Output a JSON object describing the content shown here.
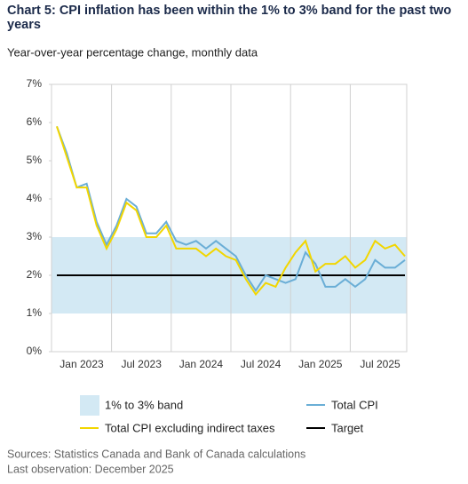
{
  "chart_data": {
    "type": "line",
    "title": "Chart 5: CPI inflation has been within the 1% to 3% band for the past two years",
    "subtitle": "Year-over-year percentage change, monthly data",
    "categories": [
      "Jan 2023",
      null,
      null,
      null,
      null,
      null,
      "Jul 2023",
      null,
      null,
      null,
      null,
      null,
      "Jan 2024",
      null,
      null,
      null,
      null,
      null,
      "Jul 2024",
      null,
      null,
      null,
      null,
      null,
      "Jan 2025",
      null,
      null,
      null,
      null,
      null,
      "Jul 2025",
      null,
      null,
      null,
      null,
      null
    ],
    "series": [
      {
        "name": "Total CPI",
        "color": "#6aaed6",
        "values": [
          5.9,
          5.2,
          4.3,
          4.4,
          3.4,
          2.8,
          3.3,
          4.0,
          3.8,
          3.1,
          3.1,
          3.4,
          2.9,
          2.8,
          2.9,
          2.7,
          2.9,
          2.7,
          2.5,
          2.0,
          1.6,
          2.0,
          1.9,
          1.8,
          1.9,
          2.6,
          2.3,
          1.7,
          1.7,
          1.9,
          1.7,
          1.9,
          2.4,
          2.2,
          2.2,
          2.4
        ]
      },
      {
        "name": "Total CPI excluding indirect taxes",
        "color": "#f2d600",
        "values": [
          5.9,
          5.1,
          4.3,
          4.3,
          3.3,
          2.7,
          3.2,
          3.9,
          3.7,
          3.0,
          3.0,
          3.3,
          2.7,
          2.7,
          2.7,
          2.5,
          2.7,
          2.5,
          2.4,
          1.9,
          1.5,
          1.8,
          1.7,
          2.2,
          2.6,
          2.9,
          2.1,
          2.3,
          2.3,
          2.5,
          2.2,
          2.4,
          2.9,
          2.7,
          2.8,
          2.5
        ]
      }
    ],
    "band": {
      "name": "1% to 3% band",
      "range": [
        1,
        3
      ],
      "color": "#d3e9f4"
    },
    "target": {
      "name": "Target",
      "value": 2,
      "color": "#000000"
    },
    "ylim": [
      0,
      7
    ],
    "yticks": [
      {
        "value": 0,
        "label": "0%"
      },
      {
        "value": 1,
        "label": "1%"
      },
      {
        "value": 2,
        "label": "2%"
      },
      {
        "value": 3,
        "label": "3%"
      },
      {
        "value": 4,
        "label": "4%"
      },
      {
        "value": 5,
        "label": "5%"
      },
      {
        "value": 6,
        "label": "6%"
      },
      {
        "value": 7,
        "label": "7%"
      }
    ],
    "notes": [
      "Sources: Statistics Canada and Bank of Canada calculations",
      "Last observation: December 2025"
    ]
  }
}
